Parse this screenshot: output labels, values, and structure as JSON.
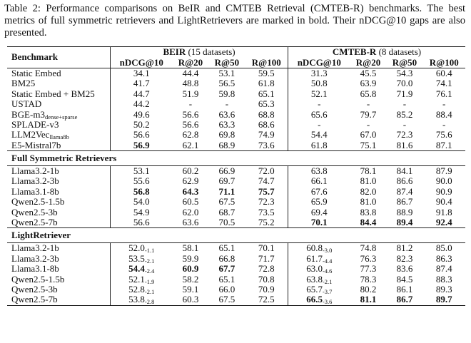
{
  "caption": "Table 2: Performance comparisons on BeIR and CMTEB Retrieval (CMTEB-R) benchmarks. The best metrics of full symmetric retrievers and LightRetrievers are marked in bold. Their nDCG@10 gaps are also presented.",
  "header": {
    "benchmark": "Benchmark",
    "groups": [
      {
        "name": "BEIR",
        "note": "(15 datasets)"
      },
      {
        "name": "CMTEB-R",
        "note": "(8 datasets)"
      }
    ],
    "metrics": [
      "nDCG@10",
      "R@20",
      "R@50",
      "R@100",
      "nDCG@10",
      "R@20",
      "R@50",
      "R@100"
    ]
  },
  "sections": [
    {
      "rows": [
        {
          "model": "Static Embed",
          "cells": [
            "34.1",
            "44.4",
            "53.1",
            "59.5",
            "31.3",
            "45.5",
            "54.3",
            "60.4"
          ]
        },
        {
          "model": "BM25",
          "cells": [
            "41.7",
            "48.8",
            "56.5",
            "61.8",
            "50.8",
            "63.9",
            "70.0",
            "74.1"
          ]
        },
        {
          "model": "Static Embed + BM25",
          "cells": [
            "44.7",
            "51.9",
            "59.8",
            "65.1",
            "52.1",
            "65.8",
            "71.9",
            "76.1"
          ]
        },
        {
          "model": "USTAD",
          "cells": [
            "44.2",
            "-",
            "-",
            "65.3",
            "-",
            "-",
            "-",
            "-"
          ]
        },
        {
          "model": {
            "text": "BGE-m3",
            "sub": "dense+sparse"
          },
          "cells": [
            "49.6",
            "56.6",
            "63.6",
            "68.8",
            "65.6",
            "79.7",
            "85.2",
            "88.4"
          ]
        },
        {
          "model": "SPLADE-v3",
          "cells": [
            "50.2",
            "56.6",
            "63.3",
            "68.6",
            "-",
            "-",
            "-",
            "-"
          ]
        },
        {
          "model": {
            "text": "LLM2Vec",
            "sub": "llama8b"
          },
          "cells": [
            "56.6",
            "62.8",
            "69.8",
            "74.9",
            "54.4",
            "67.0",
            "72.3",
            "75.6"
          ]
        },
        {
          "model": "E5-Mistral7b",
          "cells": [
            "56.9",
            "62.1",
            "68.9",
            "73.6",
            "61.8",
            "75.1",
            "81.6",
            "87.1"
          ],
          "bold": [
            0
          ]
        }
      ]
    },
    {
      "title": "Full Symmetric Retrievers",
      "rows": [
        {
          "model": "Llama3.2-1b",
          "cells": [
            "53.1",
            "60.2",
            "66.9",
            "72.0",
            "63.8",
            "78.1",
            "84.1",
            "87.9"
          ]
        },
        {
          "model": "Llama3.2-3b",
          "cells": [
            "55.6",
            "62.9",
            "69.7",
            "74.7",
            "66.1",
            "81.0",
            "86.6",
            "90.0"
          ]
        },
        {
          "model": "Llama3.1-8b",
          "cells": [
            "56.8",
            "64.3",
            "71.1",
            "75.7",
            "67.6",
            "82.0",
            "87.4",
            "90.9"
          ],
          "bold": [
            0,
            1,
            2,
            3
          ]
        },
        {
          "model": "Qwen2.5-1.5b",
          "cells": [
            "54.0",
            "60.5",
            "67.5",
            "72.3",
            "65.9",
            "81.0",
            "86.7",
            "90.4"
          ]
        },
        {
          "model": "Qwen2.5-3b",
          "cells": [
            "54.9",
            "62.0",
            "68.7",
            "73.5",
            "69.4",
            "83.8",
            "88.9",
            "91.8"
          ]
        },
        {
          "model": "Qwen2.5-7b",
          "cells": [
            "56.6",
            "63.6",
            "70.5",
            "75.2",
            "70.1",
            "84.4",
            "89.4",
            "92.4"
          ],
          "bold": [
            4,
            5,
            6,
            7
          ]
        }
      ]
    },
    {
      "title": "LightRetriever",
      "rows": [
        {
          "model": "Llama3.2-1b",
          "cells": [
            {
              "text": "52.0",
              "gap": "-1.1"
            },
            "58.1",
            "65.1",
            "70.1",
            {
              "text": "60.8",
              "gap": "-3.0"
            },
            "74.8",
            "81.2",
            "85.0"
          ]
        },
        {
          "model": "Llama3.2-3b",
          "cells": [
            {
              "text": "53.5",
              "gap": "-2.1"
            },
            "59.9",
            "66.8",
            "71.7",
            {
              "text": "61.7",
              "gap": "-4.4"
            },
            "76.3",
            "82.3",
            "86.3"
          ]
        },
        {
          "model": "Llama3.1-8b",
          "cells": [
            {
              "text": "54.4",
              "gap": "-2.4"
            },
            "60.9",
            "67.7",
            "72.8",
            {
              "text": "63.0",
              "gap": "-4.6"
            },
            "77.3",
            "83.6",
            "87.4"
          ],
          "bold": [
            0,
            1,
            2
          ]
        },
        {
          "model": "Qwen2.5-1.5b",
          "cells": [
            {
              "text": "52.1",
              "gap": "-1.9"
            },
            "58.2",
            "65.1",
            "70.8",
            {
              "text": "63.8",
              "gap": "-2.1"
            },
            "78.3",
            "84.5",
            "88.3"
          ]
        },
        {
          "model": "Qwen2.5-3b",
          "cells": [
            {
              "text": "52.8",
              "gap": "-2.1"
            },
            "59.1",
            "66.0",
            "70.9",
            {
              "text": "65.7",
              "gap": "-3.7"
            },
            "80.2",
            "86.1",
            "89.3"
          ]
        },
        {
          "model": "Qwen2.5-7b",
          "cells": [
            {
              "text": "53.8",
              "gap": "-2.8"
            },
            "60.3",
            "67.5",
            "72.5",
            {
              "text": "66.5",
              "gap": "-3.6"
            },
            "81.1",
            "86.7",
            "89.7"
          ],
          "bold": [
            4,
            5,
            6,
            7
          ]
        }
      ]
    }
  ]
}
